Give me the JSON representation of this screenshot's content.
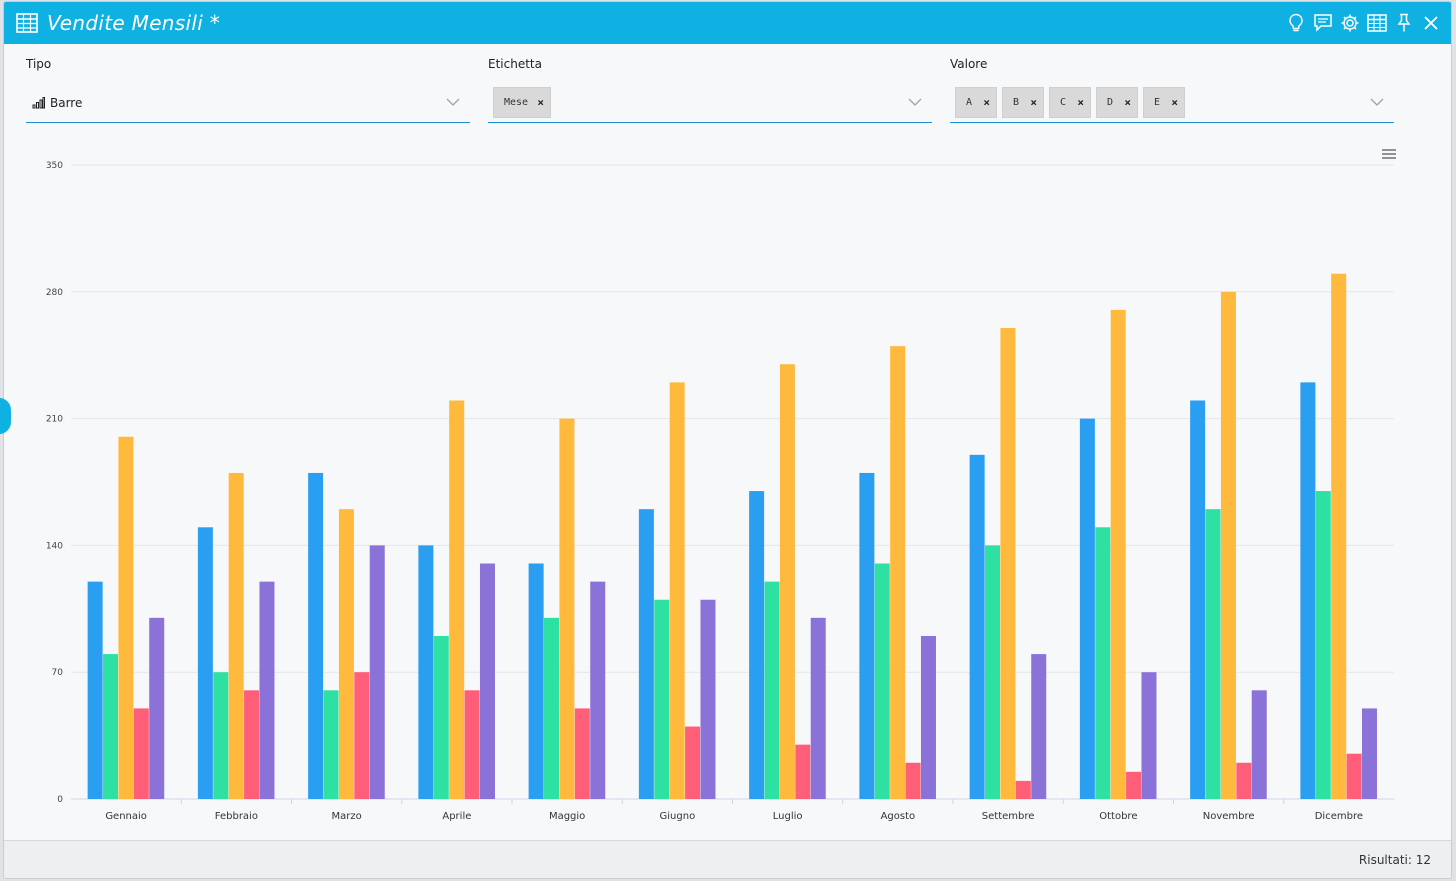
{
  "window": {
    "title": "Vendite Mensili *",
    "accent": "#0fb0e2",
    "actions": [
      "lightbulb-icon",
      "comment-icon",
      "gear-icon",
      "table-icon",
      "pin-icon",
      "close-icon"
    ]
  },
  "fields": {
    "tipo": {
      "label": "Tipo",
      "value": "Barre",
      "icon": "bar-chart-icon"
    },
    "etichetta": {
      "label": "Etichetta",
      "chips": [
        "Mese"
      ]
    },
    "valore": {
      "label": "Valore",
      "chips": [
        "A",
        "B",
        "C",
        "D",
        "E"
      ]
    }
  },
  "status": {
    "text": "Risultati: 12"
  },
  "chart_data": {
    "type": "bar",
    "categories": [
      "Gennaio",
      "Febbraio",
      "Marzo",
      "Aprile",
      "Maggio",
      "Giugno",
      "Luglio",
      "Agosto",
      "Settembre",
      "Ottobre",
      "Novembre",
      "Dicembre"
    ],
    "series": [
      {
        "color": "#2a9ff2",
        "values": [
          120,
          150,
          180,
          140,
          130,
          160,
          170,
          180,
          190,
          210,
          220,
          230
        ]
      },
      {
        "color": "#2ee0a2",
        "values": [
          80,
          70,
          60,
          90,
          100,
          110,
          120,
          130,
          140,
          150,
          160,
          170
        ]
      },
      {
        "color": "#ffb93d",
        "values": [
          200,
          180,
          160,
          220,
          210,
          230,
          240,
          250,
          260,
          270,
          280,
          290
        ]
      },
      {
        "color": "#ff5e78",
        "values": [
          50,
          60,
          70,
          60,
          50,
          40,
          30,
          20,
          10,
          15,
          20,
          25
        ]
      },
      {
        "color": "#8b72d9",
        "values": [
          100,
          120,
          140,
          130,
          120,
          110,
          100,
          90,
          80,
          70,
          60,
          50
        ]
      }
    ],
    "ylim": [
      0,
      350
    ],
    "yticks": [
      0,
      70,
      140,
      210,
      280,
      350
    ],
    "grid": true,
    "legend": "none"
  }
}
